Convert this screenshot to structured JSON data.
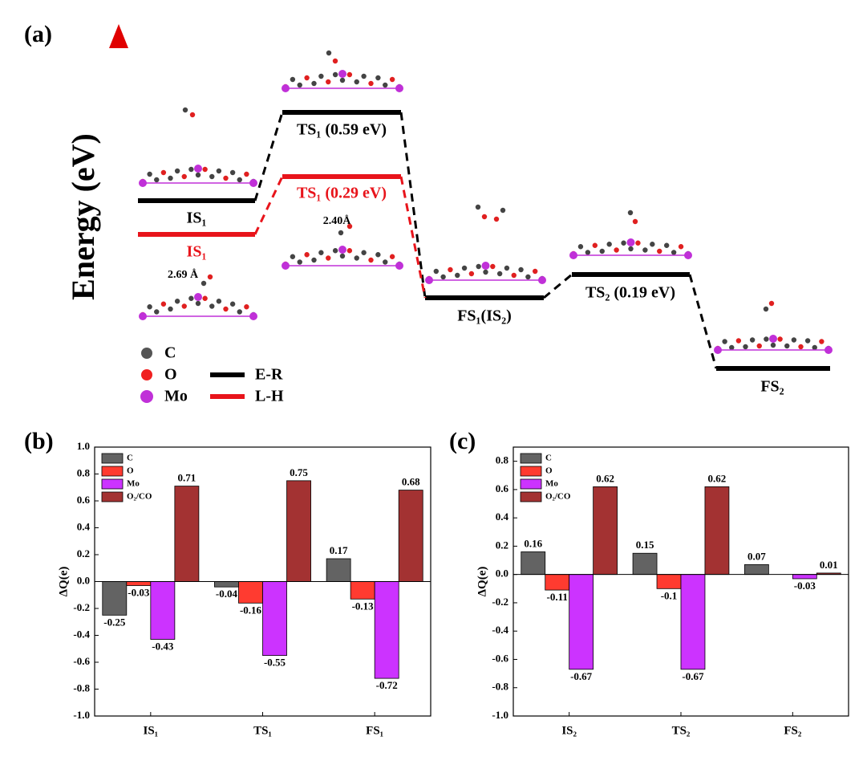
{
  "energy_diagram": {
    "panel_label": "(a)",
    "y_label": "Energy (eV)",
    "states": [
      {
        "label": "IS₁"
      },
      {
        "label": "IS₁"
      },
      {
        "label": "TS₁ (0.59 eV)"
      },
      {
        "label": "TS₁ (0.29 eV)"
      },
      {
        "label": "FS₁(IS₂)"
      },
      {
        "label": "TS₂ (0.19 eV)"
      },
      {
        "label": "FS₂"
      }
    ],
    "annotations": [
      "2.69 Å",
      "2.40Å"
    ],
    "legend": {
      "atoms": [
        "C",
        "O",
        "Mo"
      ],
      "mechanisms": [
        "E-R",
        "L-H"
      ]
    }
  },
  "chart_data": [
    {
      "type": "bar",
      "panel_label": "(b)",
      "y_label": "ΔQ(e)",
      "categories": [
        "IS₁",
        "TS₁",
        "FS₁"
      ],
      "series": [
        {
          "name": "C",
          "color": "#636363",
          "values": [
            -0.25,
            -0.04,
            0.17
          ]
        },
        {
          "name": "O",
          "color": "#ff3b30",
          "values": [
            -0.03,
            -0.16,
            -0.13
          ]
        },
        {
          "name": "Mo",
          "color": "#cc33ff",
          "values": [
            -0.43,
            -0.55,
            -0.72
          ]
        },
        {
          "name": "O₂/CO",
          "color": "#a33232",
          "values": [
            0.71,
            0.75,
            0.68
          ]
        }
      ],
      "ylim": [
        -1,
        1
      ],
      "yticks": [
        {
          "value": -1,
          "label": "-1.0"
        },
        -0.8,
        -0.6,
        -0.4,
        -0.2,
        {
          "value": 0,
          "label": "0.0"
        },
        0.2,
        0.4,
        0.6,
        0.8,
        {
          "value": 1,
          "label": "1.0"
        }
      ],
      "legend": "upper left"
    },
    {
      "type": "bar",
      "panel_label": "(c)",
      "y_label": "ΔQ(e)",
      "categories": [
        "IS₂",
        "TS₂",
        "FS₂"
      ],
      "series": [
        {
          "name": "C",
          "color": "#636363",
          "values": [
            0.16,
            0.15,
            0.07
          ]
        },
        {
          "name": "O",
          "color": "#ff3b30",
          "values": [
            -0.11,
            -0.1,
            null
          ]
        },
        {
          "name": "Mo",
          "color": "#cc33ff",
          "values": [
            -0.67,
            -0.67,
            -0.03
          ]
        },
        {
          "name": "O₂/CO",
          "color": "#a33232",
          "values": [
            0.62,
            0.62,
            0.01
          ]
        }
      ],
      "ylim": [
        -1,
        0.9
      ],
      "yticks": [
        {
          "value": -1,
          "label": "-1.0"
        },
        -0.8,
        -0.6,
        -0.4,
        -0.2,
        {
          "value": 0,
          "label": "0.0"
        },
        0.2,
        0.4,
        0.6,
        0.8
      ],
      "legend": "upper left"
    }
  ]
}
